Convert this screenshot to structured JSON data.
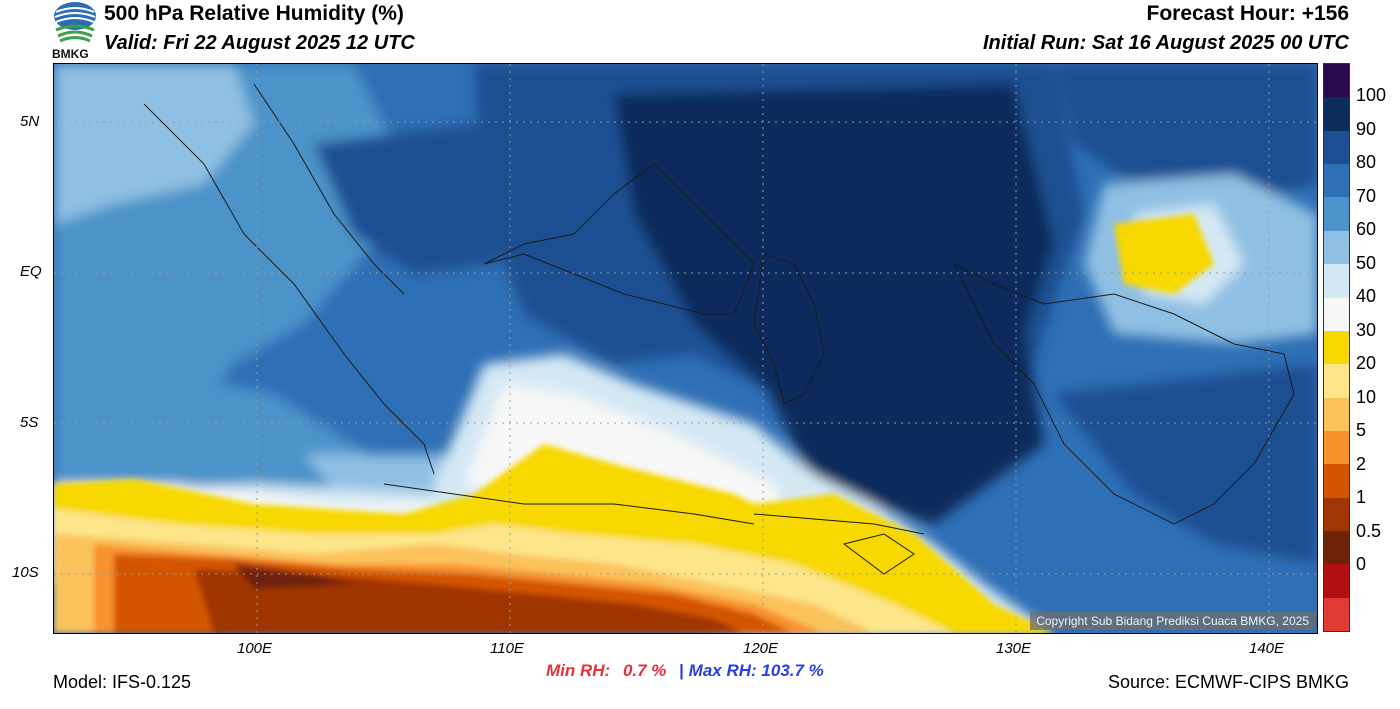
{
  "header": {
    "title": "500 hPa Relative Humidity (%)",
    "valid": "Valid: Fri 22 August 2025 12 UTC",
    "forecast_hour": "Forecast Hour: +156",
    "initial_run": "Initial Run: Sat 16 August 2025 00 UTC",
    "logo_text": "BMKG"
  },
  "map": {
    "lat_labels": [
      "5N",
      "EQ",
      "5S",
      "10S"
    ],
    "lon_labels": [
      "100E",
      "110E",
      "120E",
      "130E",
      "140E"
    ],
    "copyright": "Copyright Sub Bidang Prediksi Cuaca BMKG, 2025"
  },
  "colorbar": {
    "labels": [
      "100",
      "90",
      "80",
      "70",
      "60",
      "50",
      "40",
      "30",
      "20",
      "10",
      "5",
      "2",
      "1",
      "0.5",
      "0"
    ],
    "colors": [
      "#2a0a4e",
      "#0c2c5c",
      "#1d4f92",
      "#2f6fb5",
      "#4c93c9",
      "#8fc0e3",
      "#d4e8f4",
      "#f7f7f7",
      "#f7d800",
      "#fde58a",
      "#fbc25c",
      "#f8922d",
      "#d45500",
      "#a03506",
      "#6e2309",
      "#b01010",
      "#e23a35"
    ]
  },
  "footer": {
    "model": "Model: IFS-0.125",
    "min_label": "Min RH:",
    "min_value": "0.7 %",
    "separator": "|",
    "max_label": "Max RH:",
    "max_value": "103.7 %",
    "source": "Source: ECMWF-CIPS BMKG"
  }
}
